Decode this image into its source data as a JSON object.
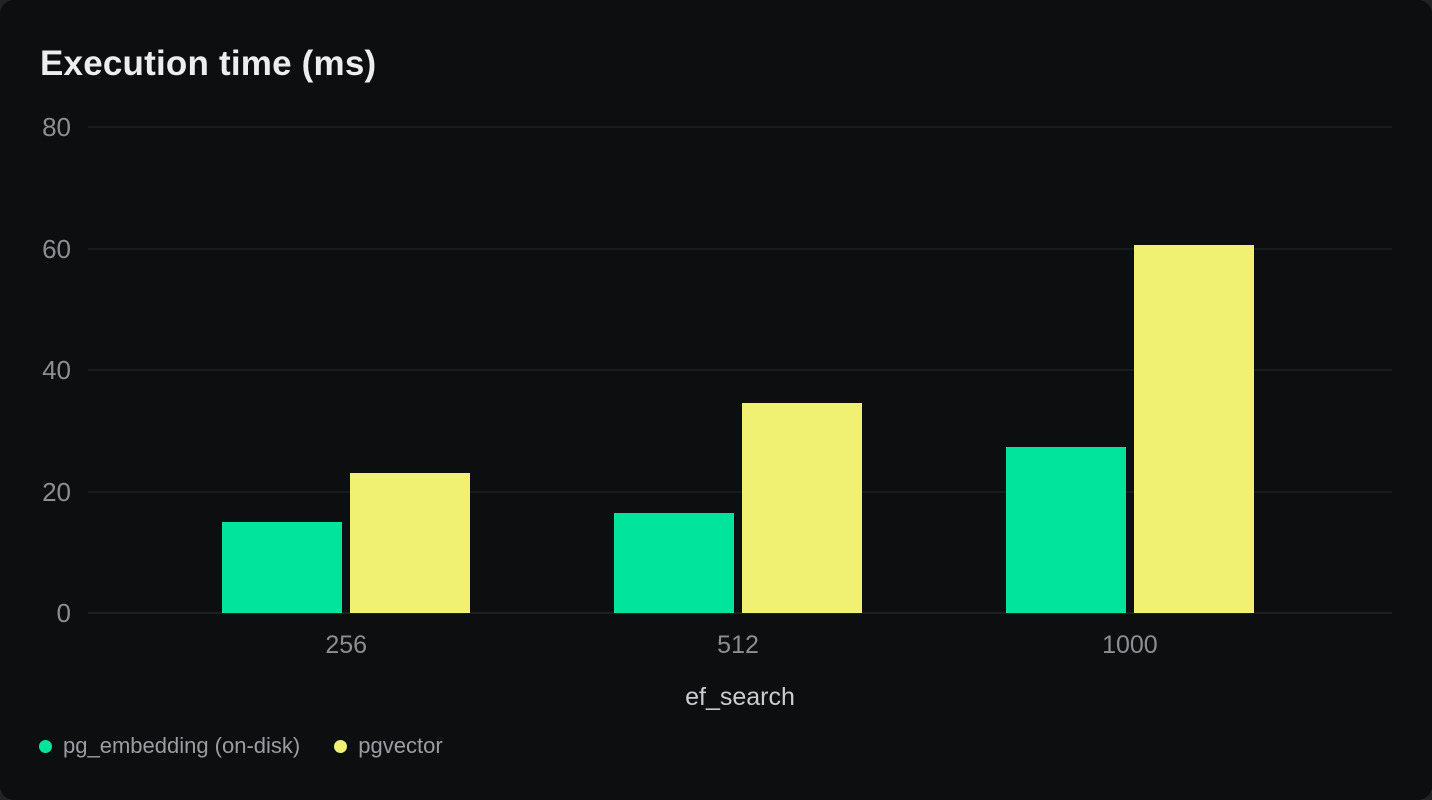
{
  "chart_data": {
    "type": "bar",
    "title": "Execution time (ms)",
    "categories": [
      "256",
      "512",
      "1000"
    ],
    "series": [
      {
        "name": "pg_embedding (on-disk)",
        "color": "#00e59b",
        "values": [
          15,
          16.4,
          27.4
        ]
      },
      {
        "name": "pgvector",
        "color": "#f0f173",
        "values": [
          23,
          34.5,
          60.6
        ]
      }
    ],
    "xlabel": "ef_search",
    "ylabel": "",
    "ylim": [
      0,
      80
    ],
    "yticks": [
      0,
      20,
      40,
      60,
      80
    ],
    "grid": "horizontal",
    "legend_position": "bottom-left"
  },
  "colors": {
    "page_bg": "#222326",
    "card_bg": "#0d0e10",
    "gridline": "#26282c",
    "zero_line": "#2e3034",
    "title": "#ededee",
    "tick_label": "#8b8e93",
    "axis_label": "#c9ccd0",
    "legend_label": "#9a9da2"
  }
}
